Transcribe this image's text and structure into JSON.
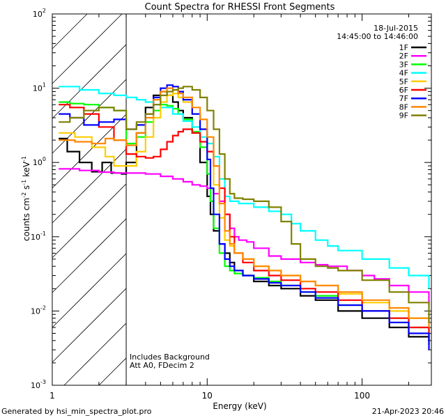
{
  "chart_data": {
    "type": "line",
    "title": "Count Spectra for RHESSI Front Segments",
    "xlabel": "Energy (keV)",
    "ylabel": "counts cm",
    "ylabel_sup1": "-2",
    "ylabel_mid": " s",
    "ylabel_sup2": "-1",
    "ylabel_end": " keV",
    "ylabel_sup3": "-1",
    "xscale": "log",
    "yscale": "log",
    "xlim": [
      1,
      280
    ],
    "ylim": [
      0.001,
      100
    ],
    "x_major_ticks": [
      {
        "value": 10,
        "label": "10"
      },
      {
        "value": 100,
        "label": "100"
      }
    ],
    "y_major_ticks": [
      {
        "value": 0.001,
        "base": "10",
        "exp": "-3"
      },
      {
        "value": 0.01,
        "base": "10",
        "exp": "-2"
      },
      {
        "value": 0.1,
        "base": "10",
        "exp": "-1"
      },
      {
        "value": 1,
        "base": "10",
        "exp": "0"
      },
      {
        "value": 10,
        "base": "10",
        "exp": "1"
      },
      {
        "value": 100,
        "base": "10",
        "exp": "2"
      }
    ],
    "x_minor_label": {
      "value": 1,
      "label": "1"
    },
    "hatched_region": [
      1,
      3
    ],
    "date": "18-Jul-2015",
    "time_range": "14:45:00 to 14:46:00",
    "annotation_lines": [
      "Includes Background",
      "Att A0, FDecim 2"
    ],
    "series": [
      {
        "name": "1F",
        "color": "#000000",
        "points": [
          [
            1.1,
            2.1
          ],
          [
            1.25,
            1.4
          ],
          [
            1.5,
            1.0
          ],
          [
            1.8,
            0.75
          ],
          [
            2.1,
            1.0
          ],
          [
            2.4,
            0.72
          ],
          [
            2.8,
            0.7
          ],
          [
            3,
            1.0
          ],
          [
            3.5,
            2.5
          ],
          [
            4,
            5.5
          ],
          [
            4.5,
            8
          ],
          [
            5,
            9
          ],
          [
            5.5,
            8
          ],
          [
            6,
            6.5
          ],
          [
            6.5,
            5
          ],
          [
            7,
            4
          ],
          [
            8,
            2.5
          ],
          [
            9,
            1.0
          ],
          [
            10,
            0.35
          ],
          [
            10.5,
            0.2
          ],
          [
            11,
            0.12
          ],
          [
            12,
            0.08
          ],
          [
            13,
            0.06
          ],
          [
            14,
            0.045
          ],
          [
            15,
            0.035
          ],
          [
            17,
            0.03
          ],
          [
            20,
            0.025
          ],
          [
            25,
            0.022
          ],
          [
            30,
            0.02
          ],
          [
            40,
            0.016
          ],
          [
            50,
            0.014
          ],
          [
            70,
            0.01
          ],
          [
            100,
            0.008
          ],
          [
            150,
            0.006
          ],
          [
            200,
            0.0045
          ],
          [
            270,
            0.0035
          ]
        ]
      },
      {
        "name": "2F",
        "color": "#ff00ff",
        "points": [
          [
            1.1,
            0.82
          ],
          [
            1.5,
            0.78
          ],
          [
            2,
            0.74
          ],
          [
            2.5,
            0.72
          ],
          [
            3,
            0.72
          ],
          [
            4,
            0.7
          ],
          [
            5,
            0.65
          ],
          [
            6,
            0.6
          ],
          [
            7,
            0.55
          ],
          [
            8,
            0.5
          ],
          [
            9,
            0.48
          ],
          [
            10,
            0.45
          ],
          [
            11,
            0.38
          ],
          [
            12,
            0.3
          ],
          [
            13,
            0.2
          ],
          [
            14,
            0.13
          ],
          [
            15,
            0.1
          ],
          [
            16,
            0.09
          ],
          [
            18,
            0.085
          ],
          [
            20,
            0.07
          ],
          [
            25,
            0.055
          ],
          [
            30,
            0.05
          ],
          [
            40,
            0.045
          ],
          [
            50,
            0.042
          ],
          [
            60,
            0.04
          ],
          [
            80,
            0.035
          ],
          [
            100,
            0.03
          ],
          [
            120,
            0.027
          ],
          [
            150,
            0.022
          ],
          [
            200,
            0.018
          ],
          [
            270,
            0.012
          ]
        ]
      },
      {
        "name": "3F",
        "color": "#00ff00",
        "points": [
          [
            1.1,
            6.5
          ],
          [
            1.3,
            6.2
          ],
          [
            1.6,
            6.0
          ],
          [
            2,
            5.5
          ],
          [
            2.5,
            5.0
          ],
          [
            3,
            1.8
          ],
          [
            3.5,
            2.2
          ],
          [
            4,
            3.5
          ],
          [
            4.5,
            5
          ],
          [
            5,
            6
          ],
          [
            5.5,
            5.8
          ],
          [
            6,
            5.3
          ],
          [
            6.5,
            4.5
          ],
          [
            7,
            3.8
          ],
          [
            8,
            2.6
          ],
          [
            9,
            1.6
          ],
          [
            10,
            0.7
          ],
          [
            10.5,
            0.3
          ],
          [
            11,
            0.13
          ],
          [
            12,
            0.06
          ],
          [
            13,
            0.04
          ],
          [
            14,
            0.035
          ],
          [
            15,
            0.032
          ],
          [
            17,
            0.03
          ],
          [
            20,
            0.028
          ],
          [
            25,
            0.025
          ],
          [
            30,
            0.022
          ],
          [
            40,
            0.018
          ],
          [
            50,
            0.016
          ],
          [
            70,
            0.012
          ],
          [
            100,
            0.01
          ],
          [
            150,
            0.008
          ],
          [
            200,
            0.006
          ],
          [
            270,
            0.004
          ]
        ]
      },
      {
        "name": "4F",
        "color": "#00ffff",
        "points": [
          [
            1.1,
            10.5
          ],
          [
            1.5,
            9.5
          ],
          [
            2,
            8.5
          ],
          [
            2.5,
            8
          ],
          [
            3,
            7.5
          ],
          [
            3.5,
            7
          ],
          [
            4,
            6.5
          ],
          [
            4.5,
            6
          ],
          [
            5,
            5.5
          ],
          [
            6,
            4.5
          ],
          [
            7,
            3.6
          ],
          [
            8,
            3.0
          ],
          [
            9,
            2.2
          ],
          [
            10,
            1.8
          ],
          [
            11,
            1.2
          ],
          [
            12,
            0.6
          ],
          [
            13,
            0.35
          ],
          [
            14,
            0.3
          ],
          [
            16,
            0.28
          ],
          [
            20,
            0.25
          ],
          [
            25,
            0.22
          ],
          [
            30,
            0.2
          ],
          [
            35,
            0.15
          ],
          [
            40,
            0.12
          ],
          [
            50,
            0.09
          ],
          [
            60,
            0.075
          ],
          [
            70,
            0.065
          ],
          [
            100,
            0.05
          ],
          [
            150,
            0.038
          ],
          [
            200,
            0.03
          ],
          [
            270,
            0.02
          ]
        ]
      },
      {
        "name": "5F",
        "color": "#ffcc00",
        "points": [
          [
            1.1,
            2.5
          ],
          [
            1.4,
            2.2
          ],
          [
            1.8,
            1.6
          ],
          [
            2.2,
            1.2
          ],
          [
            2.5,
            0.9
          ],
          [
            3,
            0.9
          ],
          [
            3.5,
            1.4
          ],
          [
            4,
            2.2
          ],
          [
            4.5,
            4
          ],
          [
            5,
            6.5
          ],
          [
            5.5,
            8
          ],
          [
            6,
            8.5
          ],
          [
            6.5,
            7.5
          ],
          [
            7,
            6.5
          ],
          [
            8,
            4.5
          ],
          [
            9,
            2.8
          ],
          [
            10,
            1.4
          ],
          [
            11,
            0.5
          ],
          [
            12,
            0.18
          ],
          [
            13,
            0.09
          ],
          [
            14,
            0.075
          ],
          [
            15,
            0.06
          ],
          [
            17,
            0.05
          ],
          [
            20,
            0.04
          ],
          [
            25,
            0.035
          ],
          [
            30,
            0.03
          ],
          [
            40,
            0.025
          ],
          [
            50,
            0.022
          ],
          [
            70,
            0.017
          ],
          [
            100,
            0.013
          ],
          [
            150,
            0.01
          ],
          [
            200,
            0.008
          ],
          [
            270,
            0.006
          ]
        ]
      },
      {
        "name": "6F",
        "color": "#ff0000",
        "points": [
          [
            1.1,
            6.0
          ],
          [
            1.3,
            5.5
          ],
          [
            1.6,
            4.5
          ],
          [
            2,
            3.0
          ],
          [
            2.5,
            2.0
          ],
          [
            3,
            1.3
          ],
          [
            3.5,
            1.2
          ],
          [
            4,
            1.15
          ],
          [
            4.5,
            1.2
          ],
          [
            5,
            1.5
          ],
          [
            5.5,
            1.9
          ],
          [
            6,
            2.3
          ],
          [
            6.5,
            2.6
          ],
          [
            7,
            2.8
          ],
          [
            8,
            2.5
          ],
          [
            9,
            1.9
          ],
          [
            10,
            1.4
          ],
          [
            11,
            0.9
          ],
          [
            12,
            0.45
          ],
          [
            13,
            0.2
          ],
          [
            14,
            0.1
          ],
          [
            15,
            0.06
          ],
          [
            17,
            0.045
          ],
          [
            20,
            0.035
          ],
          [
            25,
            0.03
          ],
          [
            30,
            0.026
          ],
          [
            40,
            0.02
          ],
          [
            50,
            0.018
          ],
          [
            70,
            0.014
          ],
          [
            100,
            0.01
          ],
          [
            150,
            0.008
          ],
          [
            200,
            0.006
          ],
          [
            270,
            0.004
          ]
        ]
      },
      {
        "name": "7F",
        "color": "#0000ff",
        "points": [
          [
            1.1,
            4.5
          ],
          [
            1.3,
            4.0
          ],
          [
            1.6,
            3.2
          ],
          [
            2,
            3.5
          ],
          [
            2.5,
            3.8
          ],
          [
            3,
            2.8
          ],
          [
            3.5,
            3.2
          ],
          [
            4,
            4.5
          ],
          [
            4.5,
            7.5
          ],
          [
            5,
            10
          ],
          [
            5.5,
            11
          ],
          [
            6,
            10.5
          ],
          [
            6.5,
            9
          ],
          [
            7,
            7
          ],
          [
            8,
            4.5
          ],
          [
            9,
            2.8
          ],
          [
            10,
            1.1
          ],
          [
            10.5,
            0.45
          ],
          [
            11,
            0.2
          ],
          [
            12,
            0.08
          ],
          [
            13,
            0.05
          ],
          [
            14,
            0.04
          ],
          [
            15,
            0.035
          ],
          [
            17,
            0.03
          ],
          [
            20,
            0.027
          ],
          [
            25,
            0.024
          ],
          [
            30,
            0.022
          ],
          [
            40,
            0.018
          ],
          [
            50,
            0.015
          ],
          [
            70,
            0.012
          ],
          [
            100,
            0.01
          ],
          [
            150,
            0.007
          ],
          [
            200,
            0.005
          ],
          [
            270,
            0.003
          ]
        ]
      },
      {
        "name": "8F",
        "color": "#ff8800",
        "points": [
          [
            1.1,
            2.0
          ],
          [
            1.4,
            1.9
          ],
          [
            1.8,
            1.8
          ],
          [
            2.2,
            2.1
          ],
          [
            2.5,
            2.0
          ],
          [
            3,
            1.7
          ],
          [
            3.5,
            2.5
          ],
          [
            4,
            4
          ],
          [
            4.5,
            7
          ],
          [
            5,
            9
          ],
          [
            5.5,
            10
          ],
          [
            6,
            9.5
          ],
          [
            6.5,
            8.5
          ],
          [
            7,
            7.5
          ],
          [
            8,
            5.5
          ],
          [
            9,
            3.8
          ],
          [
            10,
            2.2
          ],
          [
            11,
            0.9
          ],
          [
            12,
            0.28
          ],
          [
            13,
            0.12
          ],
          [
            14,
            0.08
          ],
          [
            15,
            0.06
          ],
          [
            17,
            0.05
          ],
          [
            20,
            0.04
          ],
          [
            25,
            0.035
          ],
          [
            30,
            0.03
          ],
          [
            40,
            0.025
          ],
          [
            50,
            0.022
          ],
          [
            70,
            0.018
          ],
          [
            100,
            0.014
          ],
          [
            150,
            0.011
          ],
          [
            200,
            0.008
          ],
          [
            270,
            0.006
          ]
        ]
      },
      {
        "name": "9F",
        "color": "#808000",
        "points": [
          [
            1.1,
            3.5
          ],
          [
            1.3,
            4.0
          ],
          [
            1.6,
            5.0
          ],
          [
            2,
            5.5
          ],
          [
            2.5,
            5.0
          ],
          [
            3,
            2.8
          ],
          [
            3.5,
            3.5
          ],
          [
            4,
            4.5
          ],
          [
            4.5,
            6
          ],
          [
            5,
            8
          ],
          [
            5.5,
            9
          ],
          [
            6,
            9.5
          ],
          [
            6.5,
            10
          ],
          [
            7,
            10.5
          ],
          [
            8,
            9.5
          ],
          [
            9,
            7.5
          ],
          [
            10,
            5
          ],
          [
            11,
            2.8
          ],
          [
            12,
            1.3
          ],
          [
            13,
            0.6
          ],
          [
            14,
            0.38
          ],
          [
            15,
            0.33
          ],
          [
            17,
            0.32
          ],
          [
            20,
            0.3
          ],
          [
            25,
            0.25
          ],
          [
            30,
            0.16
          ],
          [
            35,
            0.08
          ],
          [
            40,
            0.05
          ],
          [
            50,
            0.04
          ],
          [
            60,
            0.038
          ],
          [
            70,
            0.035
          ],
          [
            100,
            0.026
          ],
          [
            150,
            0.018
          ],
          [
            200,
            0.013
          ],
          [
            270,
            0.007
          ]
        ]
      }
    ]
  },
  "footer": {
    "left": "Generated by hsi_min_spectra_plot.pro",
    "right": "21-Apr-2023 20:46"
  }
}
